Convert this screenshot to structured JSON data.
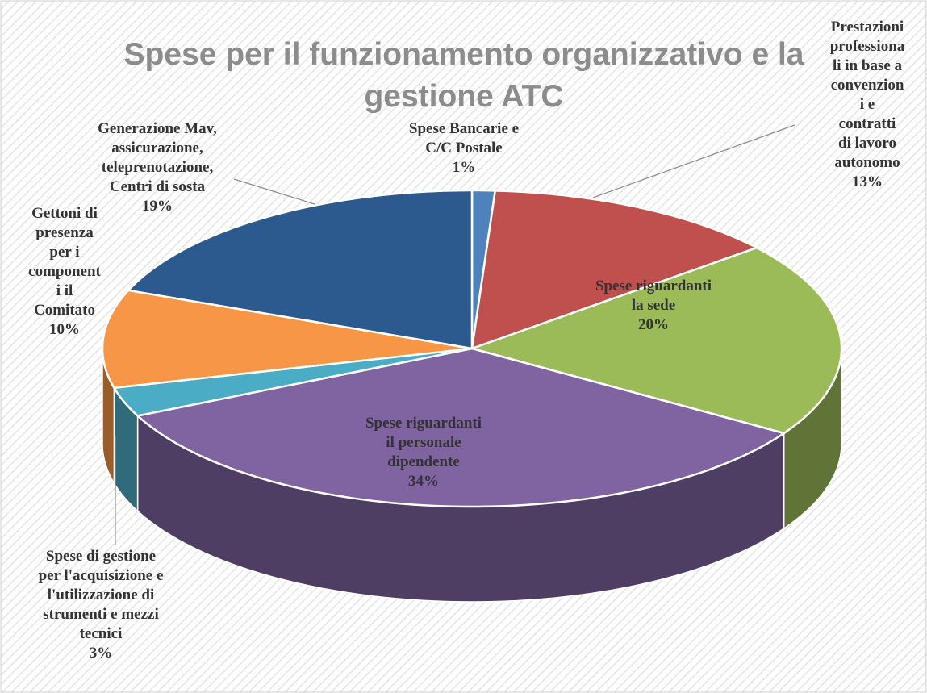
{
  "chart_data": {
    "type": "pie3d",
    "title": "Spese per il funzionamento organizzativo e la\ngestione ATC",
    "categories": [
      "Spese Bancarie e\nC/C Postale",
      "Prestazioni\nprofessiona\nli in base a\nconvenzion\ni e contratti\ndi lavoro\nautonomo",
      "Spese riguardanti\nla sede",
      "Spese riguardanti\nil personale\ndipendente",
      "Spese di gestione\nper l'acquisizione e\nl'utilizzazione di\nstrumenti e mezzi\ntecnici",
      "Gettoni di\npresenza\nper i\ncomponent\ni il\nComitato",
      "Generazione Mav,\nassicurazione,\nteleprenotazione,\nCentri di sosta"
    ],
    "values": [
      1,
      13,
      20,
      34,
      3,
      10,
      19
    ],
    "value_labels": [
      "1%",
      "13%",
      "20%",
      "34%",
      "3%",
      "10%",
      "19%"
    ],
    "colors": [
      "#4f81bd",
      "#c0504d",
      "#9bbb59",
      "#8064a2",
      "#4bacc6",
      "#f79646",
      "#2c5a8f"
    ]
  }
}
